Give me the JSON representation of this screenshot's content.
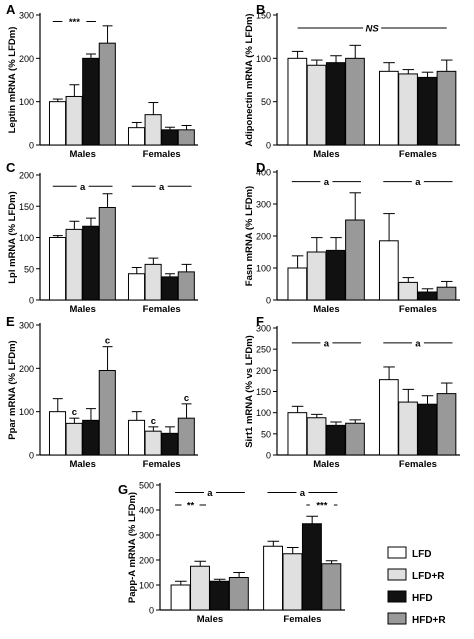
{
  "legend": {
    "items": [
      {
        "label": "LFD",
        "fill": "#ffffff"
      },
      {
        "label": "LFD+R",
        "fill": "#e0e0e0"
      },
      {
        "label": "HFD",
        "fill": "#111111"
      },
      {
        "label": "HFD+R",
        "fill": "#999999"
      }
    ]
  },
  "chart_data": [
    {
      "panel": "A",
      "type": "bar",
      "ylabel": "Leptin mRNA (% LFDm)",
      "yticks": [
        0,
        100,
        200,
        300
      ],
      "ylim": [
        0,
        300
      ],
      "categories": [
        "Males",
        "Females"
      ],
      "series": [
        {
          "name": "LFD",
          "values": [
            100,
            40
          ],
          "err": [
            6,
            12
          ]
        },
        {
          "name": "LFD+R",
          "values": [
            112,
            70
          ],
          "err": [
            27,
            28
          ]
        },
        {
          "name": "HFD",
          "values": [
            200,
            35
          ],
          "err": [
            10,
            6
          ]
        },
        {
          "name": "HFD+R",
          "values": [
            235,
            35
          ],
          "err": [
            40,
            10
          ]
        }
      ],
      "annotations": [
        {
          "text": "***",
          "group": 0,
          "from": 0,
          "to": 2,
          "y": 285
        }
      ]
    },
    {
      "panel": "B",
      "type": "bar",
      "ylabel": "Adiponectin mRNA (% LFDm)",
      "yticks": [
        0,
        50,
        100,
        150
      ],
      "ylim": [
        0,
        150
      ],
      "categories": [
        "Males",
        "Females"
      ],
      "series": [
        {
          "name": "LFD",
          "values": [
            100,
            85
          ],
          "err": [
            8,
            10
          ]
        },
        {
          "name": "LFD+R",
          "values": [
            92,
            82
          ],
          "err": [
            6,
            5
          ]
        },
        {
          "name": "HFD",
          "values": [
            95,
            78
          ],
          "err": [
            8,
            6
          ]
        },
        {
          "name": "HFD+R",
          "values": [
            100,
            85
          ],
          "err": [
            15,
            13
          ]
        }
      ],
      "annotations": [
        {
          "text": "NS",
          "span": true,
          "y": 135,
          "italic": true
        }
      ]
    },
    {
      "panel": "C",
      "type": "bar",
      "ylabel": "Lpl mRNA (% LFDm)",
      "yticks": [
        0,
        50,
        100,
        150,
        200
      ],
      "ylim": [
        0,
        200
      ],
      "categories": [
        "Males",
        "Females"
      ],
      "series": [
        {
          "name": "LFD",
          "values": [
            100,
            42
          ],
          "err": [
            3,
            10
          ]
        },
        {
          "name": "LFD+R",
          "values": [
            113,
            57
          ],
          "err": [
            13,
            10
          ]
        },
        {
          "name": "HFD",
          "values": [
            118,
            37
          ],
          "err": [
            13,
            5
          ]
        },
        {
          "name": "HFD+R",
          "values": [
            148,
            45
          ],
          "err": [
            22,
            12
          ]
        }
      ],
      "annotations": [
        {
          "text": "a",
          "group": 0,
          "from": 0,
          "to": 3,
          "y": 182
        },
        {
          "text": "a",
          "group": 1,
          "from": 0,
          "to": 3,
          "y": 182
        }
      ]
    },
    {
      "panel": "D",
      "type": "bar",
      "ylabel": "Fasn mRNA (% LFDm)",
      "yticks": [
        0,
        100,
        200,
        300,
        400
      ],
      "ylim": [
        0,
        400
      ],
      "categories": [
        "Males",
        "Females"
      ],
      "series": [
        {
          "name": "LFD",
          "values": [
            100,
            185
          ],
          "err": [
            38,
            85
          ]
        },
        {
          "name": "LFD+R",
          "values": [
            150,
            55
          ],
          "err": [
            45,
            15
          ]
        },
        {
          "name": "HFD",
          "values": [
            155,
            25
          ],
          "err": [
            40,
            10
          ]
        },
        {
          "name": "HFD+R",
          "values": [
            250,
            40
          ],
          "err": [
            85,
            18
          ]
        }
      ],
      "annotations": [
        {
          "text": "a",
          "group": 0,
          "from": 0,
          "to": 3,
          "y": 370
        },
        {
          "text": "a",
          "group": 1,
          "from": 0,
          "to": 3,
          "y": 370
        }
      ]
    },
    {
      "panel": "E",
      "type": "bar",
      "ylabel": "Ppar  mRNA (% LFDm)",
      "yticks": [
        0,
        100,
        200,
        300
      ],
      "ylim": [
        0,
        300
      ],
      "categories": [
        "Males",
        "Females"
      ],
      "series": [
        {
          "name": "LFD",
          "values": [
            100,
            80
          ],
          "err": [
            30,
            20
          ]
        },
        {
          "name": "LFD+R",
          "values": [
            73,
            55
          ],
          "err": [
            12,
            10
          ]
        },
        {
          "name": "HFD",
          "values": [
            80,
            50
          ],
          "err": [
            27,
            15
          ]
        },
        {
          "name": "HFD+R",
          "values": [
            195,
            85
          ],
          "err": [
            55,
            33
          ]
        }
      ],
      "annotations": [
        {
          "text": "c",
          "mark": true,
          "group": 0,
          "bar": 1
        },
        {
          "text": "c",
          "mark": true,
          "group": 0,
          "bar": 3
        },
        {
          "text": "c",
          "mark": true,
          "group": 1,
          "bar": 1
        },
        {
          "text": "c",
          "mark": true,
          "group": 1,
          "bar": 3
        }
      ]
    },
    {
      "panel": "F",
      "type": "bar",
      "ylabel": "Sirt1 mRNA (% vs LFDm)",
      "yticks": [
        0,
        50,
        100,
        150,
        200,
        250,
        300
      ],
      "ylim": [
        0,
        300
      ],
      "categories": [
        "Males",
        "Females"
      ],
      "series": [
        {
          "name": "LFD",
          "values": [
            100,
            178
          ],
          "err": [
            15,
            30
          ]
        },
        {
          "name": "LFD+R",
          "values": [
            88,
            125
          ],
          "err": [
            8,
            30
          ]
        },
        {
          "name": "HFD",
          "values": [
            70,
            120
          ],
          "err": [
            8,
            20
          ]
        },
        {
          "name": "HFD+R",
          "values": [
            75,
            145
          ],
          "err": [
            8,
            25
          ]
        }
      ],
      "annotations": [
        {
          "text": "a",
          "group": 0,
          "from": 0,
          "to": 3,
          "y": 265
        },
        {
          "text": "a",
          "group": 1,
          "from": 0,
          "to": 3,
          "y": 265
        }
      ]
    },
    {
      "panel": "G",
      "type": "bar",
      "ylabel": "Papp-A mRNA (% LFDm)",
      "yticks": [
        0,
        100,
        200,
        300,
        400,
        500
      ],
      "ylim": [
        0,
        500
      ],
      "categories": [
        "Males",
        "Females"
      ],
      "series": [
        {
          "name": "LFD",
          "values": [
            100,
            255
          ],
          "err": [
            15,
            20
          ]
        },
        {
          "name": "LFD+R",
          "values": [
            175,
            225
          ],
          "err": [
            20,
            25
          ]
        },
        {
          "name": "HFD",
          "values": [
            115,
            345
          ],
          "err": [
            8,
            30
          ]
        },
        {
          "name": "HFD+R",
          "values": [
            130,
            185
          ],
          "err": [
            20,
            12
          ]
        }
      ],
      "annotations": [
        {
          "text": "a",
          "group": 0,
          "from": 0,
          "to": 3,
          "y": 470
        },
        {
          "text": "**",
          "group": 0,
          "from": 0,
          "to": 1,
          "y": 420
        },
        {
          "text": "a",
          "group": 1,
          "from": 0,
          "to": 3,
          "y": 470
        },
        {
          "text": "***",
          "group": 1,
          "from": 2,
          "to": 3,
          "y": 420
        }
      ]
    }
  ]
}
